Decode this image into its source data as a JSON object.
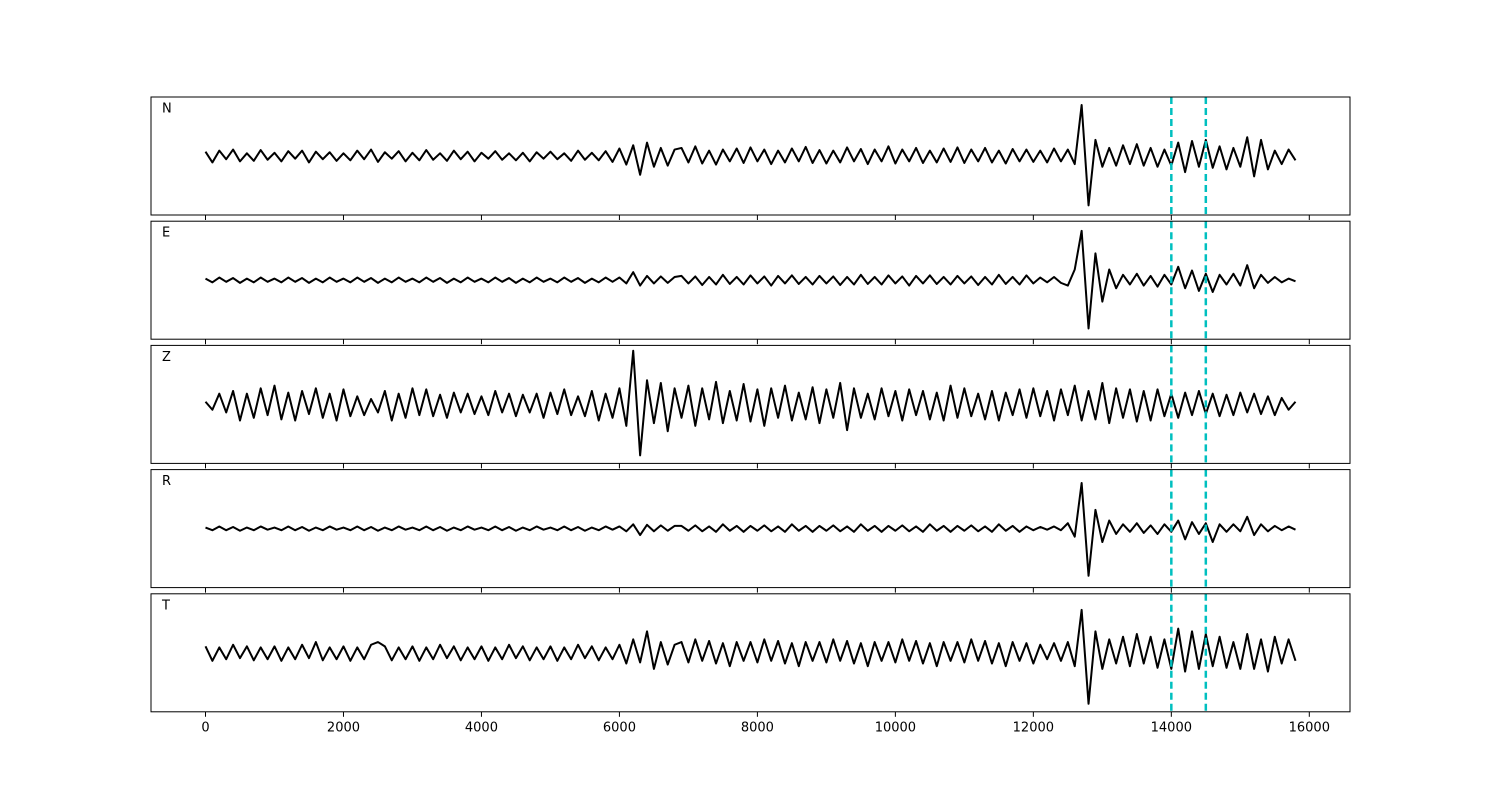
{
  "chart_data": {
    "type": "line",
    "x": [
      0,
      100,
      200,
      300,
      400,
      500,
      600,
      700,
      800,
      900,
      1000,
      1100,
      1200,
      1300,
      1400,
      1500,
      1600,
      1700,
      1800,
      1900,
      2000,
      2100,
      2200,
      2300,
      2400,
      2500,
      2600,
      2700,
      2800,
      2900,
      3000,
      3100,
      3200,
      3300,
      3400,
      3500,
      3600,
      3700,
      3800,
      3900,
      4000,
      4100,
      4200,
      4300,
      4400,
      4500,
      4600,
      4700,
      4800,
      4900,
      5000,
      5100,
      5200,
      5300,
      5400,
      5500,
      5600,
      5700,
      5800,
      5900,
      6000,
      6100,
      6200,
      6300,
      6400,
      6500,
      6600,
      6700,
      6800,
      6900,
      7000,
      7100,
      7200,
      7300,
      7400,
      7500,
      7600,
      7700,
      7800,
      7900,
      8000,
      8100,
      8200,
      8300,
      8400,
      8500,
      8600,
      8700,
      8800,
      8900,
      9000,
      9100,
      9200,
      9300,
      9400,
      9500,
      9600,
      9700,
      9800,
      9900,
      10000,
      10100,
      10200,
      10300,
      10400,
      10500,
      10600,
      10700,
      10800,
      10900,
      11000,
      11100,
      11200,
      11300,
      11400,
      11500,
      11600,
      11700,
      11800,
      11900,
      12000,
      12100,
      12200,
      12300,
      12400,
      12500,
      12600,
      12700,
      12800,
      12900,
      13000,
      13100,
      13200,
      13300,
      13400,
      13500,
      13600,
      13700,
      13800,
      13900,
      14000,
      14100,
      14200,
      14300,
      14400,
      14500,
      14600,
      14700,
      14800,
      14900,
      15000,
      15100,
      15200,
      15300,
      15400,
      15500,
      15600,
      15700,
      15800
    ],
    "xlim": [
      -790,
      16590
    ],
    "xticks": [
      0,
      2000,
      4000,
      6000,
      8000,
      10000,
      12000,
      14000,
      16000
    ],
    "ylim": [
      -1.1,
      1.1
    ],
    "color": "#000000",
    "vlines": [
      14000,
      14500
    ],
    "vline_color": "#00bfbf",
    "series": [
      {
        "name": "N",
        "values": [
          0.08,
          -0.12,
          0.1,
          -0.06,
          0.12,
          -0.1,
          0.05,
          -0.09,
          0.11,
          -0.07,
          0.06,
          -0.1,
          0.09,
          -0.05,
          0.1,
          -0.12,
          0.08,
          -0.06,
          0.07,
          -0.09,
          0.05,
          -0.08,
          0.1,
          -0.06,
          0.12,
          -0.11,
          0.07,
          -0.05,
          0.09,
          -0.1,
          0.06,
          -0.08,
          0.11,
          -0.07,
          0.05,
          -0.09,
          0.1,
          -0.06,
          0.08,
          -0.1,
          0.06,
          -0.05,
          0.09,
          -0.07,
          0.05,
          -0.08,
          0.06,
          -0.1,
          0.07,
          -0.05,
          0.08,
          -0.06,
          0.05,
          -0.09,
          0.1,
          -0.07,
          0.06,
          -0.08,
          0.09,
          -0.11,
          0.14,
          -0.16,
          0.2,
          -0.35,
          0.25,
          -0.2,
          0.15,
          -0.18,
          0.12,
          0.15,
          -0.12,
          0.18,
          -0.14,
          0.1,
          -0.16,
          0.12,
          -0.1,
          0.14,
          -0.13,
          0.16,
          -0.1,
          0.12,
          -0.15,
          0.1,
          -0.12,
          0.14,
          -0.1,
          0.17,
          -0.13,
          0.11,
          -0.14,
          0.1,
          -0.12,
          0.16,
          -0.1,
          0.13,
          -0.15,
          0.12,
          -0.1,
          0.18,
          -0.14,
          0.12,
          -0.1,
          0.15,
          -0.13,
          0.1,
          -0.12,
          0.14,
          -0.11,
          0.16,
          -0.13,
          0.12,
          -0.1,
          0.15,
          -0.12,
          0.1,
          -0.14,
          0.13,
          -0.1,
          0.12,
          -0.11,
          0.1,
          -0.12,
          0.14,
          -0.1,
          0.12,
          -0.15,
          0.95,
          -0.92,
          0.3,
          -0.2,
          0.15,
          -0.18,
          0.2,
          -0.15,
          0.22,
          -0.18,
          0.15,
          -0.2,
          0.12,
          -0.18,
          0.25,
          -0.3,
          0.28,
          -0.2,
          0.3,
          -0.22,
          0.18,
          -0.25,
          0.15,
          -0.2,
          0.35,
          -0.38,
          0.3,
          -0.25,
          0.1,
          -0.15,
          0.12,
          -0.08
        ]
      },
      {
        "name": "E",
        "values": [
          0.03,
          -0.04,
          0.05,
          -0.03,
          0.04,
          -0.05,
          0.03,
          -0.04,
          0.05,
          -0.03,
          0.03,
          -0.04,
          0.05,
          -0.03,
          0.04,
          -0.05,
          0.03,
          -0.04,
          0.05,
          -0.03,
          0.03,
          -0.04,
          0.05,
          -0.03,
          0.04,
          -0.05,
          0.03,
          -0.04,
          0.05,
          -0.03,
          0.03,
          -0.04,
          0.05,
          -0.03,
          0.04,
          -0.05,
          0.03,
          -0.04,
          0.05,
          -0.03,
          0.03,
          -0.04,
          0.05,
          -0.03,
          0.04,
          -0.05,
          0.03,
          -0.04,
          0.05,
          -0.03,
          0.03,
          -0.04,
          0.05,
          -0.03,
          0.04,
          -0.05,
          0.03,
          -0.04,
          0.05,
          -0.03,
          0.05,
          -0.06,
          0.15,
          -0.1,
          0.08,
          -0.06,
          0.07,
          -0.05,
          0.06,
          0.08,
          -0.06,
          0.07,
          -0.09,
          0.06,
          -0.08,
          0.1,
          -0.07,
          0.06,
          -0.08,
          0.09,
          -0.06,
          0.07,
          -0.1,
          0.08,
          -0.06,
          0.09,
          -0.07,
          0.06,
          -0.08,
          0.08,
          -0.06,
          0.07,
          -0.09,
          0.06,
          -0.08,
          0.1,
          -0.07,
          0.06,
          -0.08,
          0.09,
          -0.06,
          0.07,
          -0.1,
          0.08,
          -0.06,
          0.09,
          -0.07,
          0.06,
          -0.08,
          0.08,
          -0.06,
          0.07,
          -0.09,
          0.06,
          -0.08,
          0.1,
          -0.07,
          0.06,
          -0.08,
          0.09,
          -0.06,
          0.05,
          -0.04,
          0.06,
          -0.05,
          -0.1,
          0.2,
          0.92,
          -0.9,
          0.5,
          -0.4,
          0.2,
          -0.15,
          0.1,
          -0.08,
          0.12,
          -0.1,
          0.08,
          -0.12,
          0.1,
          -0.08,
          0.25,
          -0.15,
          0.18,
          -0.2,
          0.12,
          -0.22,
          0.1,
          -0.08,
          0.12,
          -0.1,
          0.28,
          -0.15,
          0.1,
          -0.05,
          0.06,
          -0.04,
          0.03,
          -0.02
        ]
      },
      {
        "name": "Z",
        "values": [
          0.05,
          -0.1,
          0.2,
          -0.15,
          0.25,
          -0.3,
          0.2,
          -0.25,
          0.3,
          -0.2,
          0.35,
          -0.28,
          0.22,
          -0.3,
          0.25,
          -0.18,
          0.3,
          -0.25,
          0.2,
          -0.3,
          0.28,
          -0.22,
          0.15,
          -0.2,
          0.1,
          -0.15,
          0.25,
          -0.3,
          0.2,
          -0.25,
          0.3,
          -0.2,
          0.28,
          -0.22,
          0.18,
          -0.25,
          0.22,
          -0.15,
          0.2,
          -0.18,
          0.15,
          -0.2,
          0.25,
          -0.15,
          0.2,
          -0.22,
          0.18,
          -0.15,
          0.2,
          -0.25,
          0.22,
          -0.18,
          0.28,
          -0.2,
          0.15,
          -0.22,
          0.25,
          -0.3,
          0.2,
          -0.25,
          0.3,
          -0.4,
          1.0,
          -0.95,
          0.45,
          -0.35,
          0.4,
          -0.5,
          0.3,
          -0.25,
          0.35,
          -0.4,
          0.3,
          -0.28,
          0.42,
          -0.35,
          0.25,
          -0.3,
          0.38,
          -0.32,
          0.28,
          -0.4,
          0.3,
          -0.25,
          0.35,
          -0.3,
          0.22,
          -0.28,
          0.32,
          -0.35,
          0.28,
          -0.25,
          0.4,
          -0.48,
          0.3,
          -0.25,
          0.2,
          -0.28,
          0.3,
          -0.22,
          0.25,
          -0.3,
          0.28,
          -0.2,
          0.25,
          -0.28,
          0.22,
          -0.3,
          0.35,
          -0.25,
          0.3,
          -0.22,
          0.2,
          -0.28,
          0.25,
          -0.3,
          0.22,
          -0.2,
          0.28,
          -0.25,
          0.3,
          -0.22,
          0.25,
          -0.3,
          0.28,
          -0.2,
          0.35,
          -0.3,
          0.25,
          -0.28,
          0.4,
          -0.35,
          0.3,
          -0.25,
          0.28,
          -0.32,
          0.25,
          -0.3,
          0.28,
          -0.22,
          0.2,
          -0.25,
          0.22,
          -0.2,
          0.25,
          -0.18,
          0.2,
          -0.22,
          0.18,
          -0.2,
          0.22,
          -0.15,
          0.2,
          -0.18,
          0.15,
          -0.2,
          0.12,
          -0.1,
          0.05
        ]
      },
      {
        "name": "R",
        "values": [
          0.02,
          -0.03,
          0.04,
          -0.03,
          0.03,
          -0.04,
          0.02,
          -0.03,
          0.04,
          -0.02,
          0.02,
          -0.03,
          0.04,
          -0.03,
          0.03,
          -0.04,
          0.02,
          -0.03,
          0.04,
          -0.02,
          0.02,
          -0.03,
          0.04,
          -0.03,
          0.03,
          -0.04,
          0.02,
          -0.03,
          0.04,
          -0.02,
          0.02,
          -0.03,
          0.04,
          -0.03,
          0.03,
          -0.04,
          0.02,
          -0.03,
          0.04,
          -0.02,
          0.02,
          -0.03,
          0.04,
          -0.03,
          0.03,
          -0.04,
          0.02,
          -0.03,
          0.04,
          -0.02,
          0.02,
          -0.03,
          0.04,
          -0.03,
          0.03,
          -0.04,
          0.02,
          -0.03,
          0.04,
          -0.02,
          0.04,
          -0.05,
          0.08,
          -0.12,
          0.07,
          -0.05,
          0.06,
          -0.04,
          0.05,
          0.05,
          -0.04,
          0.06,
          -0.05,
          0.04,
          -0.06,
          0.08,
          -0.04,
          0.05,
          -0.06,
          0.05,
          -0.04,
          0.06,
          -0.05,
          0.04,
          -0.06,
          0.08,
          -0.04,
          0.05,
          -0.06,
          0.05,
          -0.04,
          0.06,
          -0.05,
          0.04,
          -0.06,
          0.08,
          -0.04,
          0.05,
          -0.06,
          0.05,
          -0.04,
          0.06,
          -0.05,
          0.04,
          -0.06,
          0.08,
          -0.04,
          0.05,
          -0.06,
          0.05,
          -0.04,
          0.06,
          -0.05,
          0.04,
          -0.06,
          0.08,
          -0.04,
          0.05,
          -0.06,
          0.04,
          -0.03,
          0.03,
          -0.02,
          0.04,
          -0.03,
          0.1,
          -0.15,
          0.85,
          -0.88,
          0.35,
          -0.25,
          0.15,
          -0.1,
          0.08,
          -0.06,
          0.1,
          -0.08,
          0.06,
          -0.1,
          0.08,
          -0.06,
          0.15,
          -0.2,
          0.12,
          -0.1,
          0.1,
          -0.25,
          0.08,
          -0.06,
          0.08,
          -0.05,
          0.22,
          -0.12,
          0.08,
          -0.05,
          0.05,
          -0.03,
          0.04,
          -0.02
        ]
      },
      {
        "name": "T",
        "values": [
          0.12,
          -0.15,
          0.1,
          -0.12,
          0.15,
          -0.1,
          0.12,
          -0.14,
          0.1,
          -0.12,
          0.12,
          -0.15,
          0.1,
          -0.12,
          0.15,
          -0.1,
          0.2,
          -0.14,
          0.1,
          -0.12,
          0.12,
          -0.15,
          0.1,
          -0.12,
          0.15,
          0.2,
          0.12,
          -0.14,
          0.1,
          -0.12,
          0.12,
          -0.15,
          0.1,
          -0.12,
          0.15,
          -0.1,
          0.12,
          -0.14,
          0.1,
          -0.12,
          0.12,
          -0.15,
          0.1,
          -0.12,
          0.15,
          -0.1,
          0.12,
          -0.14,
          0.1,
          -0.12,
          0.12,
          -0.15,
          0.1,
          -0.12,
          0.15,
          -0.1,
          0.12,
          -0.14,
          0.1,
          -0.12,
          0.15,
          -0.2,
          0.25,
          -0.18,
          0.4,
          -0.3,
          0.2,
          -0.22,
          0.15,
          0.2,
          -0.18,
          0.25,
          -0.15,
          0.22,
          -0.2,
          0.18,
          -0.25,
          0.2,
          -0.15,
          0.2,
          -0.18,
          0.25,
          -0.15,
          0.22,
          -0.2,
          0.18,
          -0.25,
          0.2,
          -0.15,
          0.2,
          -0.18,
          0.25,
          -0.15,
          0.22,
          -0.2,
          0.18,
          -0.25,
          0.2,
          -0.15,
          0.2,
          -0.18,
          0.25,
          -0.15,
          0.22,
          -0.2,
          0.18,
          -0.25,
          0.2,
          -0.15,
          0.2,
          -0.18,
          0.25,
          -0.15,
          0.22,
          -0.2,
          0.18,
          -0.25,
          0.2,
          -0.15,
          0.18,
          -0.2,
          0.15,
          -0.12,
          0.18,
          -0.15,
          0.2,
          -0.25,
          0.8,
          -0.95,
          0.4,
          -0.3,
          0.25,
          -0.2,
          0.3,
          -0.25,
          0.35,
          -0.2,
          0.3,
          -0.28,
          0.25,
          -0.3,
          0.45,
          -0.35,
          0.4,
          -0.3,
          0.35,
          -0.25,
          0.3,
          -0.28,
          0.2,
          -0.3,
          0.35,
          -0.3,
          0.25,
          -0.35,
          0.3,
          -0.2,
          0.25,
          -0.15
        ]
      }
    ]
  }
}
